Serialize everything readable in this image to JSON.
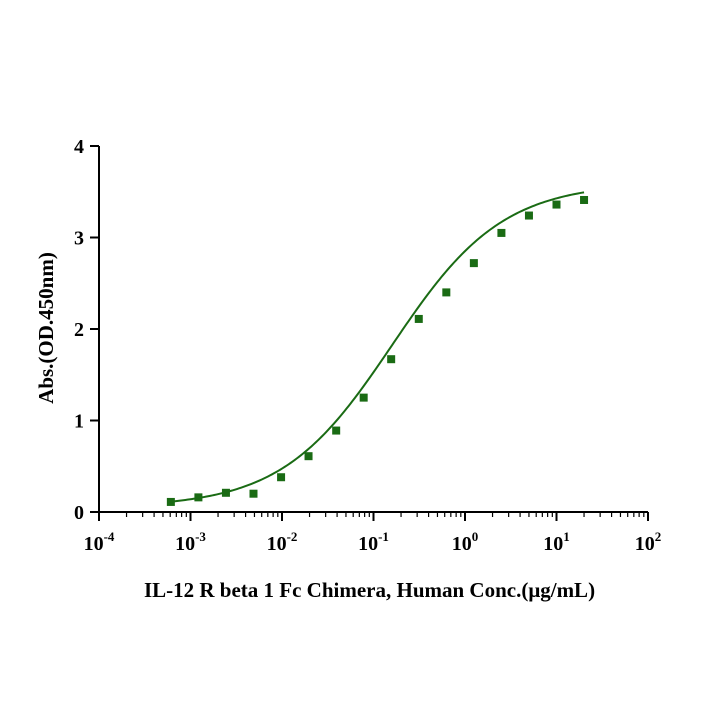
{
  "chart_data": {
    "type": "scatter",
    "xlabel": "IL-12 R beta 1 Fc Chimera, Human Conc.(μg/mL)",
    "ylabel": "Abs.(OD.450nm)",
    "x_scale": "log",
    "xlim": [
      0.0001,
      100
    ],
    "ylim": [
      0,
      4
    ],
    "x_ticks": [
      {
        "value": 0.0001,
        "base": "10",
        "exp": "-4"
      },
      {
        "value": 0.001,
        "base": "10",
        "exp": "-3"
      },
      {
        "value": 0.01,
        "base": "10",
        "exp": "-2"
      },
      {
        "value": 0.1,
        "base": "10",
        "exp": "-1"
      },
      {
        "value": 1,
        "base": "10",
        "exp": "0"
      },
      {
        "value": 10,
        "base": "10",
        "exp": "1"
      },
      {
        "value": 100,
        "base": "10",
        "exp": "2"
      }
    ],
    "y_ticks": [
      "0",
      "1",
      "2",
      "3",
      "4"
    ],
    "grid": false,
    "color": "#1a6b14",
    "series": [
      {
        "x": [
          0.00061,
          0.00122,
          0.00244,
          0.00488,
          0.00977,
          0.0195,
          0.0391,
          0.0781,
          0.156,
          0.3125,
          0.625,
          1.25,
          2.5,
          5,
          10,
          20
        ],
        "y": [
          0.11,
          0.16,
          0.21,
          0.2,
          0.38,
          0.61,
          0.89,
          1.25,
          1.67,
          2.11,
          2.4,
          2.72,
          3.05,
          3.24,
          3.36,
          3.41
        ]
      }
    ],
    "fit": {
      "type": "4PL",
      "bottom": 0.05,
      "top": 3.6,
      "ec50": 0.16,
      "hill": 0.72
    }
  }
}
